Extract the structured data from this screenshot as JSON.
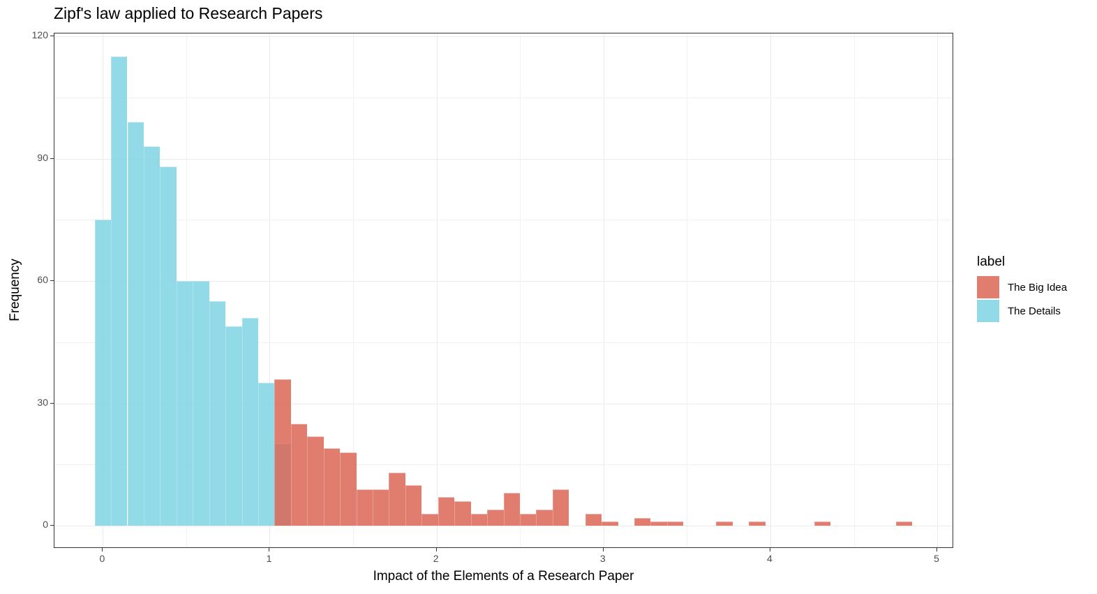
{
  "chart_data": {
    "type": "bar",
    "subtype": "histogram (overlapping)",
    "title": "Zipf's law applied to Research Papers",
    "xlabel": "Impact of the Elements of a Research Paper",
    "ylabel": "Frequency",
    "xlim": [
      -0.29,
      5.1
    ],
    "ylim": [
      -5.6,
      120.7
    ],
    "x_ticks": [
      0,
      1,
      2,
      3,
      4,
      5
    ],
    "y_ticks": [
      0,
      30,
      60,
      90,
      120
    ],
    "grid": true,
    "legend": {
      "title": "label",
      "position": "right",
      "entries": [
        "The Big Idea",
        "The Details"
      ]
    },
    "bin_width": 0.098,
    "series": [
      {
        "name": "The Details",
        "color": "#80D3E4",
        "bins": [
          {
            "x0": -0.049,
            "count": 75
          },
          {
            "x0": 0.049,
            "count": 115
          },
          {
            "x0": 0.147,
            "count": 99
          },
          {
            "x0": 0.245,
            "count": 93
          },
          {
            "x0": 0.343,
            "count": 88
          },
          {
            "x0": 0.441,
            "count": 60
          },
          {
            "x0": 0.539,
            "count": 60
          },
          {
            "x0": 0.637,
            "count": 55
          },
          {
            "x0": 0.735,
            "count": 49
          },
          {
            "x0": 0.833,
            "count": 51
          },
          {
            "x0": 0.931,
            "count": 35
          },
          {
            "x0": 1.029,
            "count": 20
          }
        ]
      },
      {
        "name": "The Big Idea",
        "color": "#DA6656",
        "bins": [
          {
            "x0": 1.029,
            "count": 36
          },
          {
            "x0": 1.127,
            "count": 25
          },
          {
            "x0": 1.225,
            "count": 22
          },
          {
            "x0": 1.323,
            "count": 19
          },
          {
            "x0": 1.421,
            "count": 18
          },
          {
            "x0": 1.519,
            "count": 9
          },
          {
            "x0": 1.617,
            "count": 9
          },
          {
            "x0": 1.715,
            "count": 13
          },
          {
            "x0": 1.813,
            "count": 10
          },
          {
            "x0": 1.911,
            "count": 3
          },
          {
            "x0": 2.009,
            "count": 7
          },
          {
            "x0": 2.107,
            "count": 6
          },
          {
            "x0": 2.205,
            "count": 3
          },
          {
            "x0": 2.303,
            "count": 4
          },
          {
            "x0": 2.401,
            "count": 8
          },
          {
            "x0": 2.499,
            "count": 3
          },
          {
            "x0": 2.597,
            "count": 4
          },
          {
            "x0": 2.695,
            "count": 9
          },
          {
            "x0": 2.891,
            "count": 3
          },
          {
            "x0": 2.989,
            "count": 1
          },
          {
            "x0": 3.185,
            "count": 2
          },
          {
            "x0": 3.283,
            "count": 1
          },
          {
            "x0": 3.381,
            "count": 1
          },
          {
            "x0": 3.675,
            "count": 1
          },
          {
            "x0": 3.871,
            "count": 1
          },
          {
            "x0": 4.263,
            "count": 1
          },
          {
            "x0": 4.753,
            "count": 1
          }
        ]
      }
    ]
  },
  "legend": {
    "title": "label",
    "items": [
      {
        "label": "The Big Idea",
        "color": "#DA6656"
      },
      {
        "label": "The Details",
        "color": "#80D3E4"
      }
    ]
  }
}
